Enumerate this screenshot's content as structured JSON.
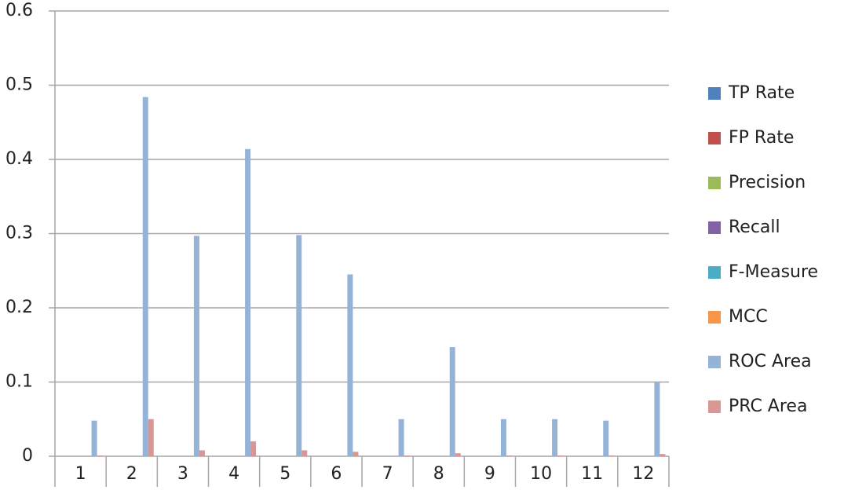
{
  "chart_data": {
    "type": "bar",
    "categories": [
      "1",
      "2",
      "3",
      "4",
      "5",
      "6",
      "7",
      "8",
      "9",
      "10",
      "11",
      "12"
    ],
    "series": [
      {
        "name": "TP Rate",
        "color": "#4f81bd",
        "values": [
          0,
          0,
          0,
          0,
          0,
          0,
          0,
          0,
          0,
          0,
          0,
          0
        ]
      },
      {
        "name": "FP Rate",
        "color": "#c0504d",
        "values": [
          0,
          0,
          0,
          0,
          0,
          0,
          0,
          0,
          0,
          0,
          0,
          0
        ]
      },
      {
        "name": "Precision",
        "color": "#9bbb59",
        "values": [
          0,
          0,
          0,
          0,
          0,
          0,
          0,
          0,
          0,
          0,
          0,
          0
        ]
      },
      {
        "name": "Recall",
        "color": "#8064a2",
        "values": [
          0,
          0,
          0,
          0,
          0,
          0,
          0,
          0,
          0,
          0,
          0,
          0
        ]
      },
      {
        "name": "F-Measure",
        "color": "#4bacc6",
        "values": [
          0,
          0,
          0,
          0,
          0,
          0,
          0,
          0,
          0,
          0,
          0,
          0
        ]
      },
      {
        "name": "MCC",
        "color": "#f79646",
        "values": [
          0,
          0,
          0,
          0,
          0,
          0,
          0,
          0,
          0,
          0,
          0,
          0
        ]
      },
      {
        "name": "ROC Area",
        "color": "#95b3d7",
        "values": [
          0.048,
          0.484,
          0.297,
          0.414,
          0.298,
          0.245,
          0.05,
          0.147,
          0.05,
          0.05,
          0.048,
          0.1
        ]
      },
      {
        "name": "PRC Area",
        "color": "#d99694",
        "values": [
          0.001,
          0.05,
          0.008,
          0.02,
          0.008,
          0.006,
          0.001,
          0.004,
          0.001,
          0.001,
          0.001,
          0.003
        ]
      }
    ],
    "ylim": [
      0,
      0.6
    ],
    "yticks": [
      0,
      0.1,
      0.2,
      0.3,
      0.4,
      0.5,
      0.6
    ],
    "grid": true,
    "legend": "right"
  }
}
